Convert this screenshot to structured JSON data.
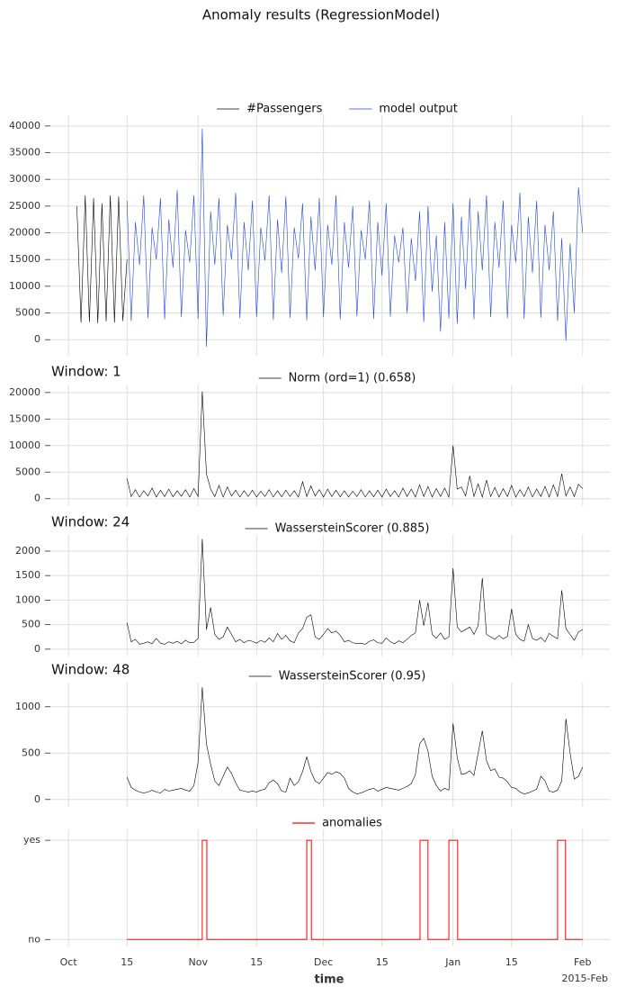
{
  "title": "Anomaly results (RegressionModel)",
  "x_axis": {
    "xlim": [
      -5.2,
      129.5
    ],
    "xticks": [
      {
        "value": 0,
        "label": "Oct"
      },
      {
        "value": 14,
        "label": "15"
      },
      {
        "value": 31,
        "label": "Nov"
      },
      {
        "value": 45,
        "label": "15"
      },
      {
        "value": 61,
        "label": "Dec"
      },
      {
        "value": 75,
        "label": "15"
      },
      {
        "value": 92,
        "label": "Jan"
      },
      {
        "value": 106,
        "label": "15"
      },
      {
        "value": 123,
        "label": "Feb"
      }
    ],
    "xlabel": "time",
    "offset_label": "2015-Feb",
    "grid": true
  },
  "chart_data": [
    {
      "type": "line",
      "ylim": [
        -3000,
        42000
      ],
      "yticks": [
        0,
        5000,
        10000,
        15000,
        20000,
        25000,
        30000,
        35000,
        40000
      ],
      "grid": true,
      "legend": "upper center",
      "series": [
        {
          "name": "#Passengers",
          "color": "#000000",
          "x": [
            2,
            3,
            4,
            5,
            6,
            7,
            8,
            9,
            10,
            11,
            12,
            13,
            14
          ],
          "values": [
            25000,
            3200,
            27000,
            3300,
            26500,
            3100,
            25500,
            3400,
            27000,
            3200,
            26800,
            3500,
            15000
          ]
        },
        {
          "name": "model output",
          "color": "#1f45e0",
          "x": [
            14,
            15,
            16,
            17,
            18,
            19,
            20,
            21,
            22,
            23,
            24,
            25,
            26,
            27,
            28,
            29,
            30,
            31,
            32,
            33,
            34,
            35,
            36,
            37,
            38,
            39,
            40,
            41,
            42,
            43,
            44,
            45,
            46,
            47,
            48,
            49,
            50,
            51,
            52,
            53,
            54,
            55,
            56,
            57,
            58,
            59,
            60,
            61,
            62,
            63,
            64,
            65,
            66,
            67,
            68,
            69,
            70,
            71,
            72,
            73,
            74,
            75,
            76,
            77,
            78,
            79,
            80,
            81,
            82,
            83,
            84,
            85,
            86,
            87,
            88,
            89,
            90,
            91,
            92,
            93,
            94,
            95,
            96,
            97,
            98,
            99,
            100,
            101,
            102,
            103,
            104,
            105,
            106,
            107,
            108,
            109,
            110,
            111,
            112,
            113,
            114,
            115,
            116,
            117,
            118,
            119,
            120,
            121,
            122,
            123
          ],
          "values": [
            26000,
            3500,
            22000,
            14000,
            27000,
            4000,
            21000,
            15000,
            26500,
            3800,
            22500,
            13500,
            28000,
            4200,
            20500,
            14500,
            27000,
            3900,
            39500,
            -1300,
            24000,
            14000,
            26500,
            4500,
            21500,
            15000,
            27500,
            4000,
            22000,
            13000,
            26000,
            4300,
            21000,
            14800,
            27000,
            3700,
            22500,
            12500,
            26800,
            4100,
            21000,
            15200,
            25500,
            3600,
            23000,
            13000,
            26500,
            4200,
            21500,
            14000,
            27000,
            3800,
            22000,
            13500,
            25000,
            4400,
            20500,
            15000,
            26000,
            3900,
            22000,
            12000,
            25500,
            4300,
            19500,
            14500,
            21000,
            5000,
            19000,
            11000,
            24000,
            3300,
            25000,
            9000,
            19500,
            1500,
            22000,
            4000,
            25500,
            3000,
            23000,
            9500,
            26500,
            3800,
            24000,
            13000,
            27000,
            4200,
            22000,
            13500,
            26000,
            4000,
            21500,
            14500,
            27500,
            3900,
            23000,
            12500,
            26000,
            4100,
            21500,
            13000,
            24000,
            3500,
            19000,
            -200,
            18000,
            5000,
            28500,
            20000
          ]
        }
      ]
    },
    {
      "type": "line",
      "title": "Window: 1",
      "ylim": [
        -1400,
        21500
      ],
      "yticks": [
        0,
        5000,
        10000,
        15000,
        20000
      ],
      "grid": true,
      "legend": "upper center",
      "x": [
        14,
        15,
        16,
        17,
        18,
        19,
        20,
        21,
        22,
        23,
        24,
        25,
        26,
        27,
        28,
        29,
        30,
        31,
        32,
        33,
        34,
        35,
        36,
        37,
        38,
        39,
        40,
        41,
        42,
        43,
        44,
        45,
        46,
        47,
        48,
        49,
        50,
        51,
        52,
        53,
        54,
        55,
        56,
        57,
        58,
        59,
        60,
        61,
        62,
        63,
        64,
        65,
        66,
        67,
        68,
        69,
        70,
        71,
        72,
        73,
        74,
        75,
        76,
        77,
        78,
        79,
        80,
        81,
        82,
        83,
        84,
        85,
        86,
        87,
        88,
        89,
        90,
        91,
        92,
        93,
        94,
        95,
        96,
        97,
        98,
        99,
        100,
        101,
        102,
        103,
        104,
        105,
        106,
        107,
        108,
        109,
        110,
        111,
        112,
        113,
        114,
        115,
        116,
        117,
        118,
        119,
        120,
        121,
        122,
        123
      ],
      "series": [
        {
          "name": "Norm (ord=1) (0.658)",
          "color": "#000000",
          "values": [
            3800,
            400,
            1700,
            300,
            1500,
            500,
            2000,
            300,
            1600,
            400,
            1800,
            350,
            1500,
            450,
            1700,
            300,
            1900,
            400,
            20200,
            4700,
            1800,
            400,
            2500,
            300,
            2200,
            500,
            1600,
            300,
            1500,
            400,
            1600,
            300,
            1400,
            400,
            1700,
            300,
            1500,
            350,
            1600,
            400,
            1500,
            300,
            3200,
            400,
            2400,
            500,
            1700,
            300,
            1800,
            400,
            1600,
            350,
            1500,
            300,
            1400,
            400,
            1700,
            300,
            1500,
            350,
            1600,
            300,
            1800,
            400,
            1500,
            300,
            2000,
            400,
            1800,
            300,
            2600,
            400,
            2300,
            300,
            1900,
            400,
            2000,
            300,
            10000,
            1800,
            2200,
            500,
            4300,
            400,
            2800,
            300,
            3500,
            400,
            2100,
            300,
            1900,
            400,
            2500,
            300,
            1700,
            400,
            2200,
            300,
            1800,
            400,
            2300,
            300,
            2600,
            400,
            4700,
            500,
            2200,
            400,
            2700,
            1900
          ]
        }
      ]
    },
    {
      "type": "line",
      "title": "Window: 24",
      "ylim": [
        -150,
        2330
      ],
      "yticks": [
        0,
        500,
        1000,
        1500,
        2000
      ],
      "grid": true,
      "legend": "upper center",
      "x": [
        14,
        15,
        16,
        17,
        18,
        19,
        20,
        21,
        22,
        23,
        24,
        25,
        26,
        27,
        28,
        29,
        30,
        31,
        32,
        33,
        34,
        35,
        36,
        37,
        38,
        39,
        40,
        41,
        42,
        43,
        44,
        45,
        46,
        47,
        48,
        49,
        50,
        51,
        52,
        53,
        54,
        55,
        56,
        57,
        58,
        59,
        60,
        61,
        62,
        63,
        64,
        65,
        66,
        67,
        68,
        69,
        70,
        71,
        72,
        73,
        74,
        75,
        76,
        77,
        78,
        79,
        80,
        81,
        82,
        83,
        84,
        85,
        86,
        87,
        88,
        89,
        90,
        91,
        92,
        93,
        94,
        95,
        96,
        97,
        98,
        99,
        100,
        101,
        102,
        103,
        104,
        105,
        106,
        107,
        108,
        109,
        110,
        111,
        112,
        113,
        114,
        115,
        116,
        117,
        118,
        119,
        120,
        121,
        122,
        123
      ],
      "series": [
        {
          "name": "WassersteinScorer (0.885)",
          "color": "#000000",
          "values": [
            540,
            150,
            200,
            100,
            120,
            150,
            110,
            220,
            120,
            100,
            150,
            120,
            160,
            110,
            180,
            130,
            140,
            220,
            2250,
            400,
            850,
            300,
            200,
            250,
            450,
            300,
            150,
            200,
            130,
            180,
            160,
            120,
            180,
            140,
            230,
            150,
            320,
            200,
            280,
            170,
            130,
            330,
            420,
            650,
            700,
            250,
            200,
            300,
            420,
            330,
            370,
            280,
            150,
            180,
            130,
            110,
            120,
            100,
            160,
            190,
            130,
            120,
            230,
            150,
            110,
            170,
            130,
            200,
            280,
            330,
            1000,
            480,
            950,
            300,
            220,
            330,
            200,
            250,
            1650,
            450,
            350,
            400,
            450,
            300,
            480,
            1450,
            300,
            250,
            200,
            280,
            210,
            260,
            820,
            300,
            200,
            160,
            500,
            220,
            180,
            240,
            150,
            320,
            260,
            210,
            1200,
            420,
            300,
            180,
            350,
            400
          ]
        }
      ]
    },
    {
      "type": "line",
      "title": "Window: 48",
      "ylim": [
        -80,
        1260
      ],
      "yticks": [
        0,
        500,
        1000
      ],
      "grid": true,
      "legend": "upper center",
      "x": [
        14,
        15,
        16,
        17,
        18,
        19,
        20,
        21,
        22,
        23,
        24,
        25,
        26,
        27,
        28,
        29,
        30,
        31,
        32,
        33,
        34,
        35,
        36,
        37,
        38,
        39,
        40,
        41,
        42,
        43,
        44,
        45,
        46,
        47,
        48,
        49,
        50,
        51,
        52,
        53,
        54,
        55,
        56,
        57,
        58,
        59,
        60,
        61,
        62,
        63,
        64,
        65,
        66,
        67,
        68,
        69,
        70,
        71,
        72,
        73,
        74,
        75,
        76,
        77,
        78,
        79,
        80,
        81,
        82,
        83,
        84,
        85,
        86,
        87,
        88,
        89,
        90,
        91,
        92,
        93,
        94,
        95,
        96,
        97,
        98,
        99,
        100,
        101,
        102,
        103,
        104,
        105,
        106,
        107,
        108,
        109,
        110,
        111,
        112,
        113,
        114,
        115,
        116,
        117,
        118,
        119,
        120,
        121,
        122,
        123
      ],
      "series": [
        {
          "name": "WassersteinScorer (0.95)",
          "color": "#000000",
          "values": [
            240,
            130,
            100,
            80,
            70,
            80,
            100,
            80,
            70,
            110,
            90,
            100,
            110,
            120,
            100,
            90,
            150,
            400,
            1210,
            600,
            380,
            200,
            150,
            250,
            350,
            280,
            180,
            100,
            90,
            80,
            90,
            80,
            100,
            110,
            180,
            210,
            170,
            90,
            80,
            230,
            150,
            190,
            300,
            460,
            300,
            200,
            170,
            230,
            290,
            270,
            300,
            280,
            230,
            120,
            80,
            60,
            70,
            90,
            110,
            120,
            90,
            110,
            130,
            120,
            110,
            100,
            120,
            140,
            170,
            270,
            600,
            660,
            520,
            250,
            150,
            90,
            120,
            100,
            820,
            450,
            270,
            280,
            310,
            260,
            500,
            740,
            420,
            310,
            330,
            240,
            230,
            190,
            130,
            120,
            80,
            60,
            70,
            90,
            110,
            250,
            200,
            90,
            80,
            100,
            200,
            870,
            500,
            220,
            250,
            350
          ]
        }
      ]
    },
    {
      "type": "line",
      "ylim": [
        -0.07,
        1.11
      ],
      "yticks": [
        {
          "value": 0,
          "label": "no"
        },
        {
          "value": 1,
          "label": "yes"
        }
      ],
      "grid": true,
      "legend": "upper center",
      "x": [
        14,
        32,
        32,
        33.1,
        33.1,
        57,
        57,
        58.1,
        58.1,
        84.1,
        84.1,
        86,
        86,
        91,
        91,
        93.1,
        93.1,
        117,
        117,
        118.9,
        118.9,
        123
      ],
      "series": [
        {
          "name": "anomalies",
          "color": "#ff0000",
          "values": [
            0,
            0,
            1,
            1,
            0,
            0,
            1,
            1,
            0,
            0,
            1,
            1,
            0,
            0,
            1,
            1,
            0,
            0,
            1,
            1,
            0,
            0
          ]
        }
      ]
    }
  ]
}
